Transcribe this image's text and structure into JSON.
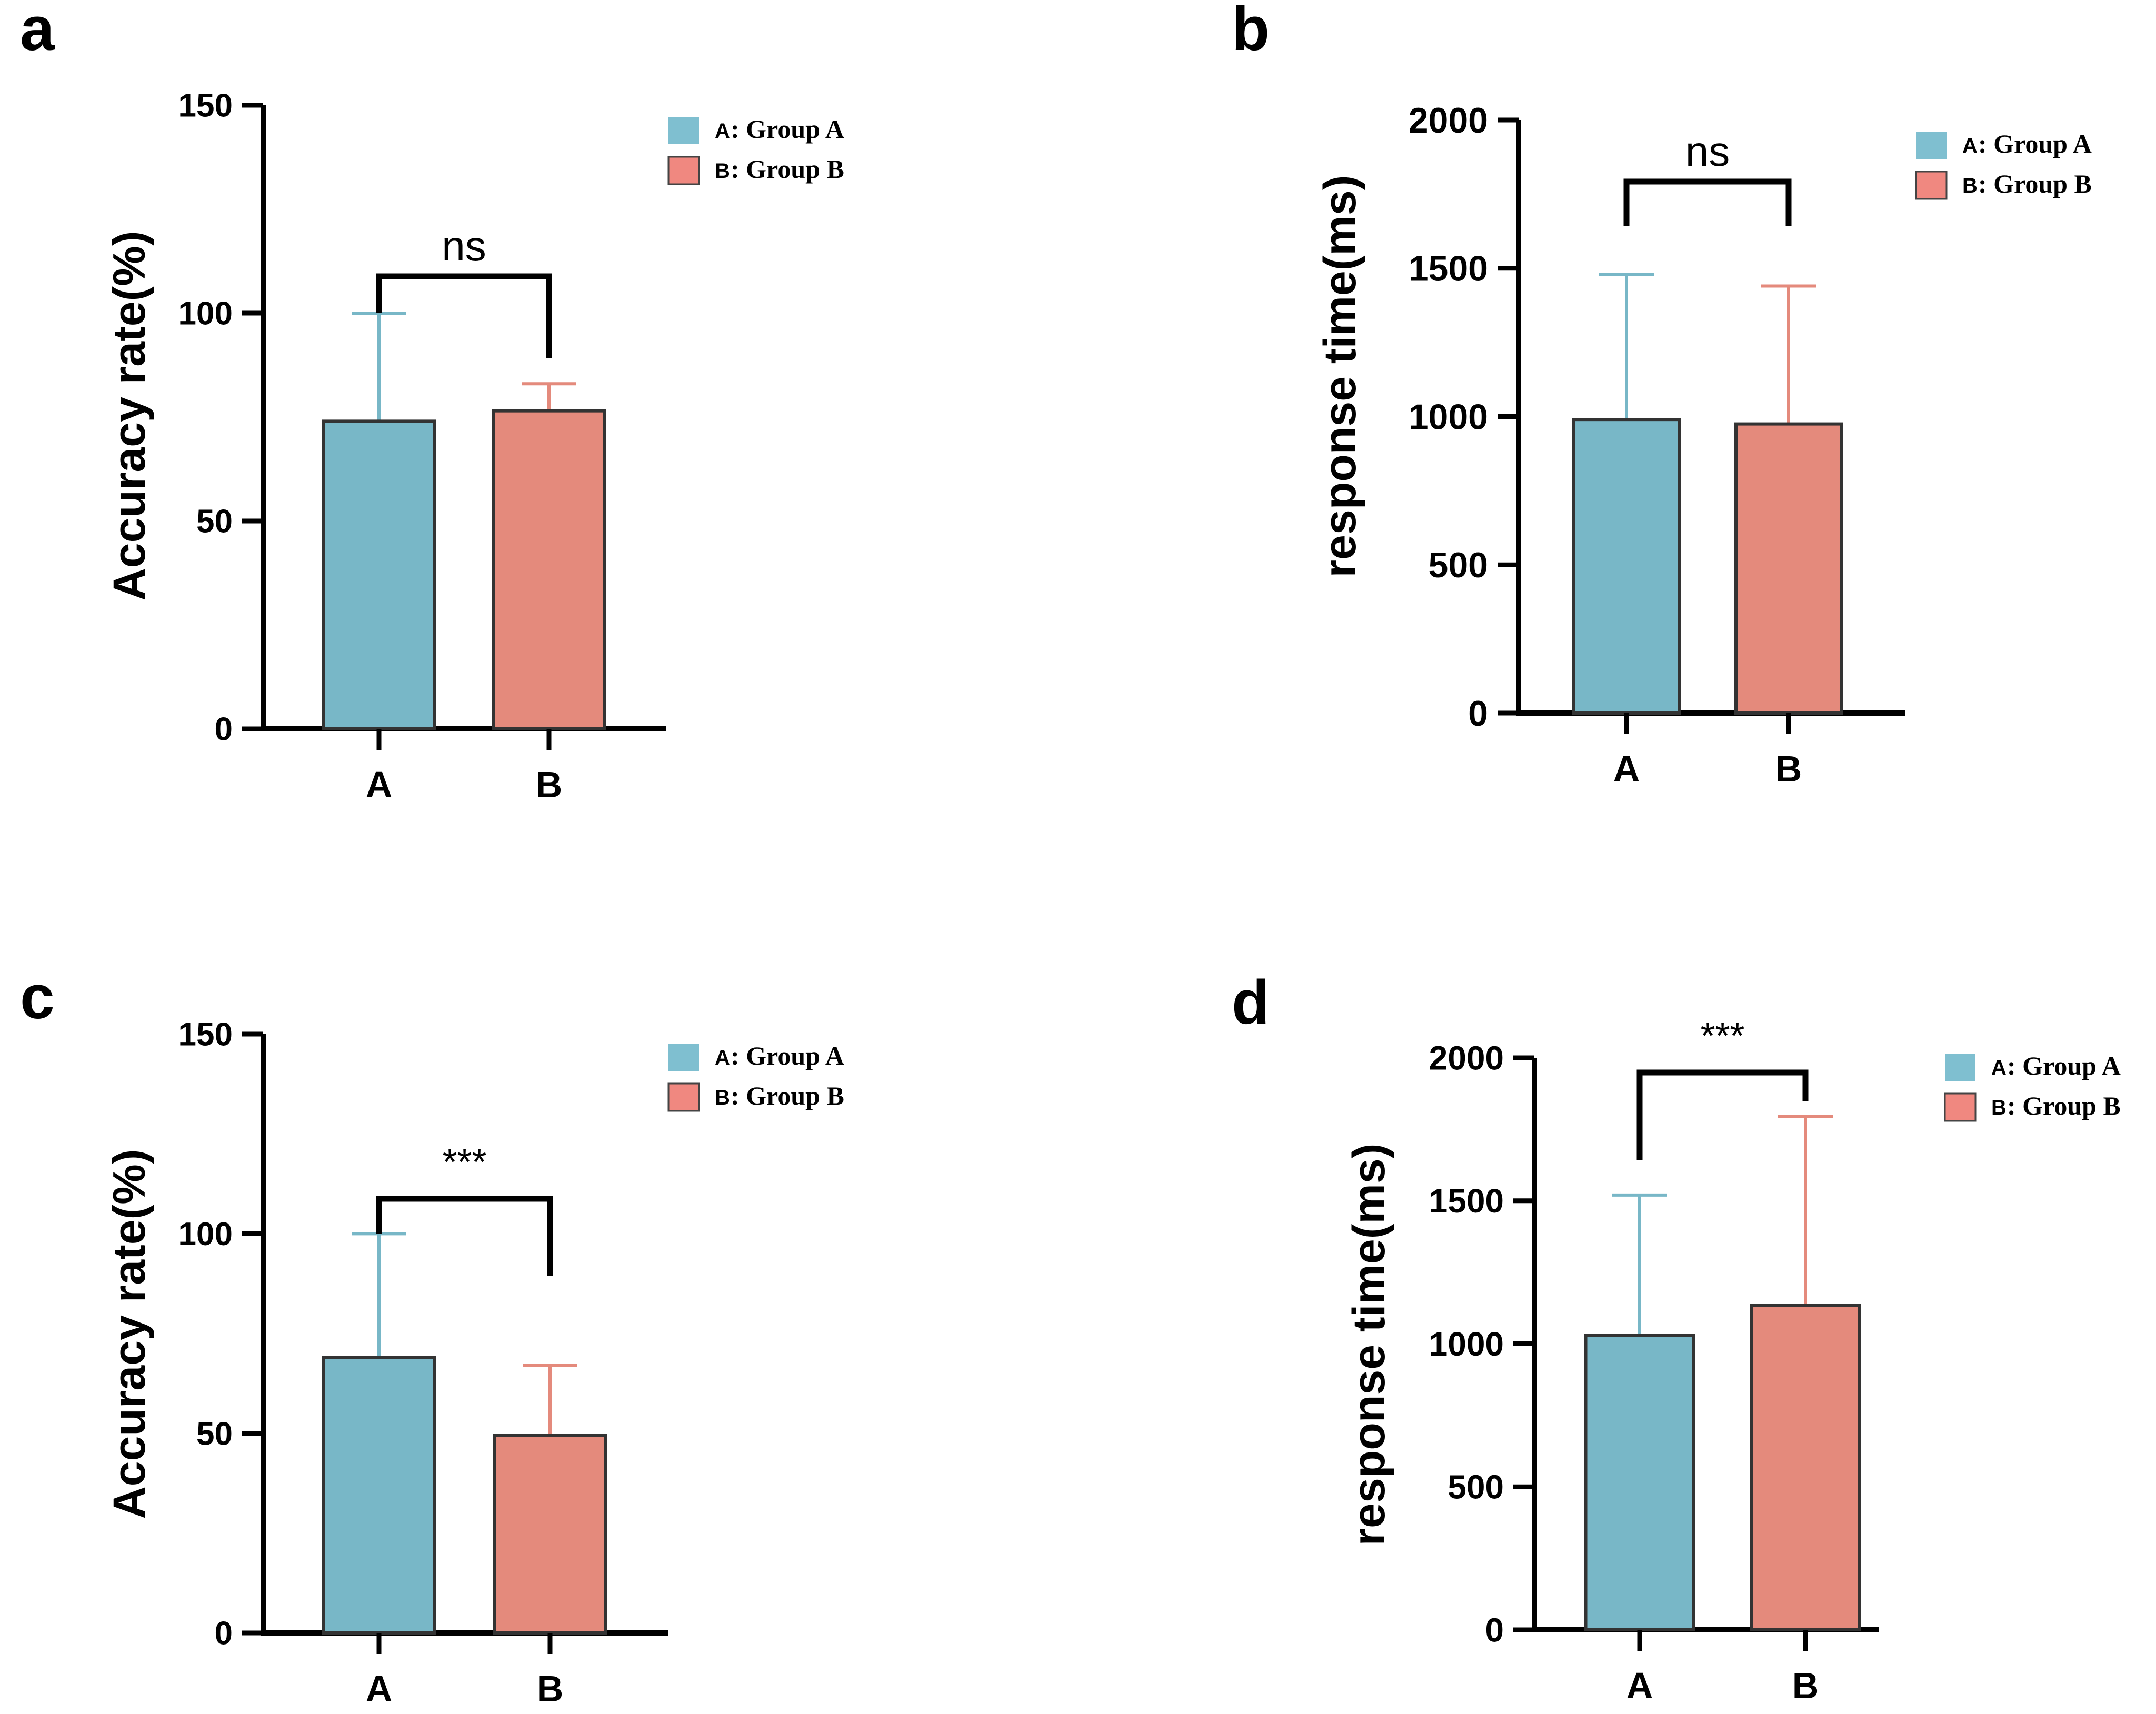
{
  "colors": {
    "group_a": "#78b7c7",
    "group_b": "#e48a7c",
    "group_a_legend": "#7fbfd0",
    "group_b_legend": "#f08880",
    "axis": "#000000"
  },
  "chart_data": [
    {
      "panel": "a",
      "type": "bar",
      "ylabel": "Accuracy rate(%)",
      "xlabel": "",
      "categories": [
        "A",
        "B"
      ],
      "values": [
        74,
        76.5
      ],
      "error_upper": [
        100,
        83
      ],
      "ylim": [
        0,
        150
      ],
      "yticks": [
        "0",
        "50",
        "100",
        "150"
      ],
      "significance": "ns",
      "legend": [
        {
          "key": "A",
          "label": "Group A"
        },
        {
          "key": "B",
          "label": "Group B"
        }
      ],
      "legend_position": "top-right"
    },
    {
      "panel": "b",
      "type": "bar",
      "ylabel": "response time(ms)",
      "xlabel": "",
      "categories": [
        "A",
        "B"
      ],
      "values": [
        990,
        975
      ],
      "error_upper": [
        1480,
        1440
      ],
      "ylim": [
        0,
        2000
      ],
      "yticks": [
        "0",
        "500",
        "1000",
        "1500",
        "2000"
      ],
      "significance": "ns",
      "legend": [
        {
          "key": "A",
          "label": "Group A"
        },
        {
          "key": "B",
          "label": "Group B"
        }
      ],
      "legend_position": "top-right"
    },
    {
      "panel": "c",
      "type": "bar",
      "ylabel": "Accuracy rate(%)",
      "xlabel": "",
      "categories": [
        "A",
        "B"
      ],
      "values": [
        69,
        49.5
      ],
      "error_upper": [
        100,
        67
      ],
      "ylim": [
        0,
        150
      ],
      "yticks": [
        "0",
        "50",
        "100",
        "150"
      ],
      "significance": "***",
      "legend": [
        {
          "key": "A",
          "label": "Group A"
        },
        {
          "key": "B",
          "label": "Group B"
        }
      ],
      "legend_position": "top-right"
    },
    {
      "panel": "d",
      "type": "bar",
      "ylabel": "response time(ms)",
      "xlabel": "",
      "categories": [
        "A",
        "B"
      ],
      "values": [
        1030,
        1135
      ],
      "error_upper": [
        1520,
        1795
      ],
      "ylim": [
        0,
        2000
      ],
      "yticks": [
        "0",
        "500",
        "1000",
        "1500",
        "2000"
      ],
      "significance": "***",
      "legend": [
        {
          "key": "A",
          "label": "Group A"
        },
        {
          "key": "B",
          "label": "Group B"
        }
      ],
      "legend_position": "top-right"
    }
  ]
}
